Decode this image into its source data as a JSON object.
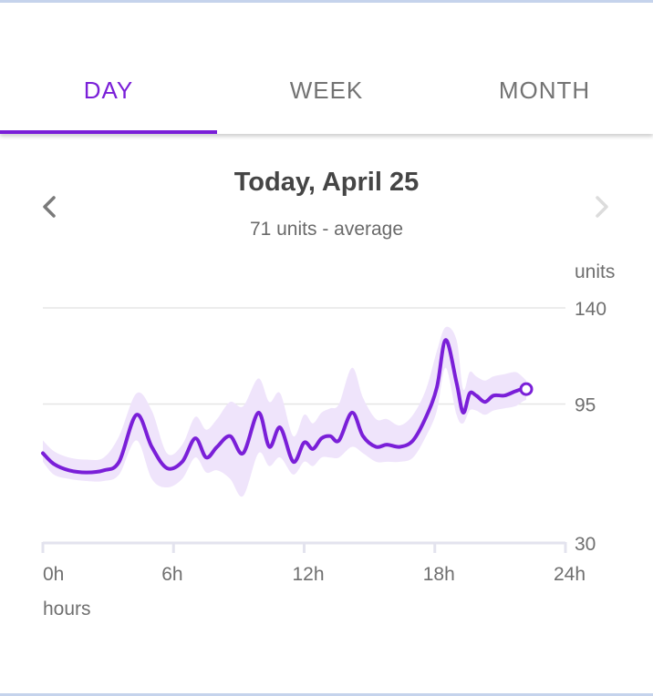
{
  "tabs": [
    {
      "label": "DAY",
      "active": true
    },
    {
      "label": "WEEK",
      "active": false
    },
    {
      "label": "MONTH",
      "active": false
    }
  ],
  "header": {
    "title": "Today, April 25",
    "subtitle": "71 units - average",
    "prev_icon": "chevron-left-icon",
    "next_icon": "chevron-right-icon"
  },
  "colors": {
    "accent": "#7a1fd8",
    "band": "#efe4fb",
    "grid": "#e6e6e6",
    "axis": "#e3e3ee",
    "text": "#6f6f6f"
  },
  "chart_data": {
    "type": "line",
    "xlabel": "hours",
    "ylabel": "units",
    "xlim": [
      0,
      24
    ],
    "ylim": [
      30,
      140
    ],
    "xticks": [
      0,
      6,
      12,
      18,
      24
    ],
    "xtick_labels": [
      "0h",
      "6h",
      "12h",
      "18h",
      "24h"
    ],
    "yticks": [
      30,
      95,
      140
    ],
    "ytick_labels": [
      "30",
      "95",
      "140"
    ],
    "grid": true,
    "series": [
      {
        "x": [
          0,
          0.5,
          1.2,
          2,
          2.8,
          3.5,
          4.3,
          5,
          5.7,
          6.4,
          7,
          7.5,
          8,
          8.6,
          9.2,
          9.9,
          10.4,
          10.9,
          11.5,
          12,
          12.4,
          12.8,
          13.2,
          13.6,
          14.2,
          14.7,
          15.3,
          15.8,
          16.4,
          17,
          17.6,
          18.1,
          18.5,
          19,
          19.3,
          19.6,
          19.9,
          20.3,
          20.7,
          21.2,
          21.7,
          22,
          22.2
        ],
        "y": [
          72,
          67,
          64,
          63,
          64,
          68,
          90,
          75,
          65,
          68,
          79,
          70,
          75,
          80,
          72,
          91,
          75,
          84,
          68,
          77,
          74,
          79,
          80,
          78,
          91,
          80,
          75,
          76,
          75,
          78,
          89,
          103,
          125,
          105,
          91,
          100,
          99,
          96,
          99,
          99,
          101,
          102,
          102
        ]
      }
    ],
    "band": {
      "upper": [
        78,
        73,
        70,
        69,
        70,
        80,
        100,
        92,
        72,
        76,
        89,
        83,
        88,
        96,
        94,
        107,
        96,
        100,
        80,
        90,
        86,
        91,
        93,
        95,
        112,
        98,
        88,
        88,
        85,
        90,
        102,
        120,
        131,
        125,
        102,
        110,
        108,
        106,
        108,
        109,
        110,
        108,
        106
      ],
      "lower": [
        68,
        62,
        60,
        59,
        59,
        62,
        78,
        60,
        56,
        60,
        70,
        63,
        64,
        60,
        52,
        72,
        66,
        70,
        62,
        68,
        66,
        70,
        70,
        70,
        75,
        72,
        68,
        68,
        68,
        70,
        80,
        92,
        112,
        90,
        86,
        92,
        92,
        90,
        92,
        93,
        94,
        96,
        97
      ]
    }
  }
}
